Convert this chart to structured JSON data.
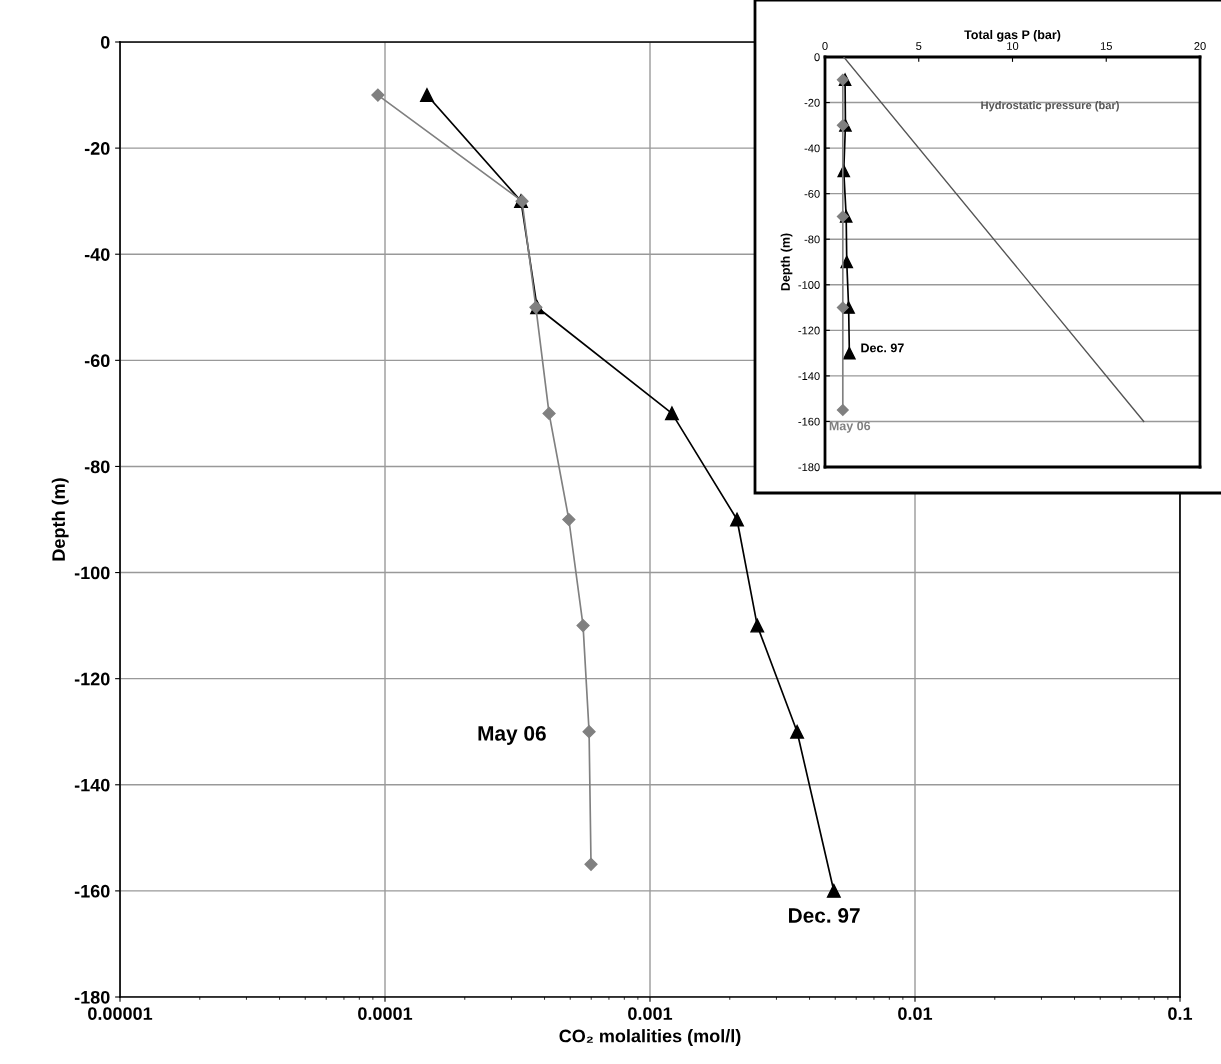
{
  "chart_data": [
    {
      "type": "line",
      "log": "x",
      "xlabel": "CO₂ molalities (mol/l)",
      "ylabel": "Depth (m)",
      "xlim": [
        1e-05,
        0.1
      ],
      "xticks": [
        {
          "value": 1e-05,
          "label": "0.00001"
        },
        {
          "value": 0.0001,
          "label": "0.0001"
        },
        {
          "value": 0.001,
          "label": "0.001"
        },
        {
          "value": 0.01,
          "label": "0.01"
        },
        {
          "value": 0.1,
          "label": "0.1"
        }
      ],
      "ylim": [
        -180,
        0
      ],
      "yticks": [
        -180,
        -160,
        -140,
        -120,
        -100,
        -80,
        -60,
        -40,
        -20,
        0
      ],
      "grid": true,
      "legend": false,
      "series": [
        {
          "name": "Dec. 97",
          "color": "#000000",
          "marker": "triangle",
          "x": [
            0.000144,
            0.000326,
            0.000375,
            0.00121,
            0.00213,
            0.00254,
            0.00359,
            0.00494
          ],
          "values": [
            -10,
            -30,
            -50,
            -70,
            -90,
            -110,
            -130,
            -160
          ]
        },
        {
          "name": "May 06",
          "color": "#808080",
          "marker": "diamond",
          "x": [
            9.4e-05,
            0.000329,
            0.000371,
            0.000416,
            0.000494,
            0.000559,
            0.000589,
            0.000599
          ],
          "values": [
            -10,
            -30,
            -50,
            -70,
            -90,
            -110,
            -130,
            -155
          ]
        }
      ]
    },
    {
      "type": "line",
      "xlabel": "Total gas P (bar)",
      "ylabel": "Depth (m)",
      "xlim": [
        0,
        20
      ],
      "xticks": [
        0,
        5,
        10,
        15,
        20
      ],
      "ylim": [
        -180,
        0
      ],
      "yticks": [
        -180,
        -160,
        -140,
        -120,
        -100,
        -80,
        -60,
        -40,
        -20,
        0
      ],
      "grid": "y",
      "legend": false,
      "series": [
        {
          "name": "Hydrostatic pressure (bar)",
          "color": "#555555",
          "marker": "none",
          "x": [
            1,
            17
          ],
          "values": [
            0,
            -160
          ]
        },
        {
          "name": "Dec. 97",
          "color": "#000000",
          "marker": "triangle",
          "x": [
            1.07,
            1.09,
            1.0,
            1.13,
            1.16,
            1.26,
            1.3
          ],
          "values": [
            -10,
            -30,
            -50,
            -70,
            -90,
            -110,
            -130
          ]
        },
        {
          "name": "May 06",
          "color": "#808080",
          "marker": "diamond",
          "x": [
            0.95,
            0.95,
            0.95,
            0.95,
            0.95
          ],
          "values": [
            -10,
            -30,
            -70,
            -110,
            -155
          ]
        }
      ]
    }
  ]
}
